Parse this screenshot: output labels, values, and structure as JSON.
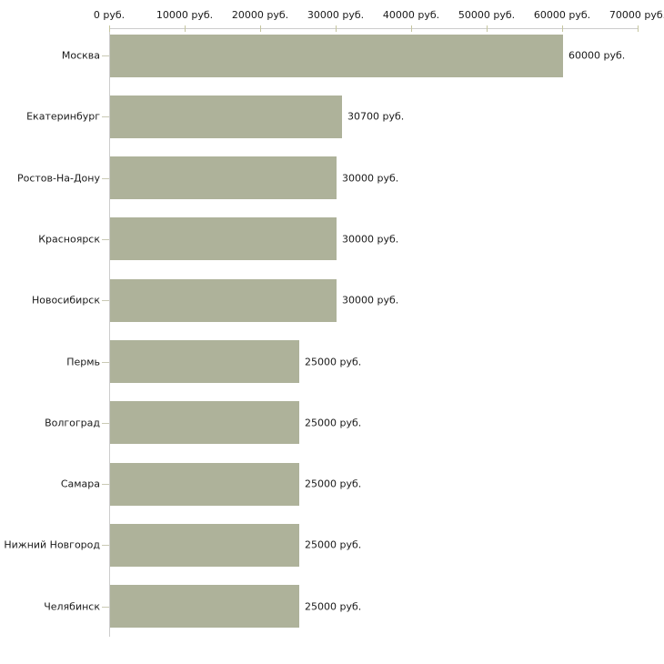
{
  "chart_data": {
    "type": "bar",
    "orientation": "horizontal",
    "title": "",
    "xlabel": "",
    "ylabel": "",
    "categories": [
      "Москва",
      "Екатеринбург",
      "Ростов-На-Дону",
      "Красноярск",
      "Новосибирск",
      "Пермь",
      "Волгоград",
      "Самара",
      "Нижний Новгород",
      "Челябинск"
    ],
    "values": [
      60000,
      30700,
      30000,
      30000,
      30000,
      25000,
      25000,
      25000,
      25000,
      25000
    ],
    "value_labels": [
      "60000 руб.",
      "30700 руб.",
      "30000 руб.",
      "30000 руб.",
      "30000 руб.",
      "25000 руб.",
      "25000 руб.",
      "25000 руб.",
      "25000 руб.",
      "25000 руб."
    ],
    "xlim": [
      0,
      70000
    ],
    "x_axis_position": "top",
    "x_ticks": [
      0,
      10000,
      20000,
      30000,
      40000,
      50000,
      60000,
      70000
    ],
    "x_tick_labels": [
      "0 руб.",
      "10000 руб.",
      "20000 руб.",
      "30000 руб.",
      "40000 руб.",
      "50000 руб.",
      "60000 руб.",
      "70000 руб."
    ],
    "grid": false,
    "legend": "none",
    "colors": {
      "bar_fill": "#aeb29a",
      "axis_line": "#cccccc",
      "x_tick_mark": "#c6c6a0",
      "y_tick_mark": "#c9c9b4",
      "text": "#1a1a1a",
      "background": "#ffffff"
    }
  }
}
